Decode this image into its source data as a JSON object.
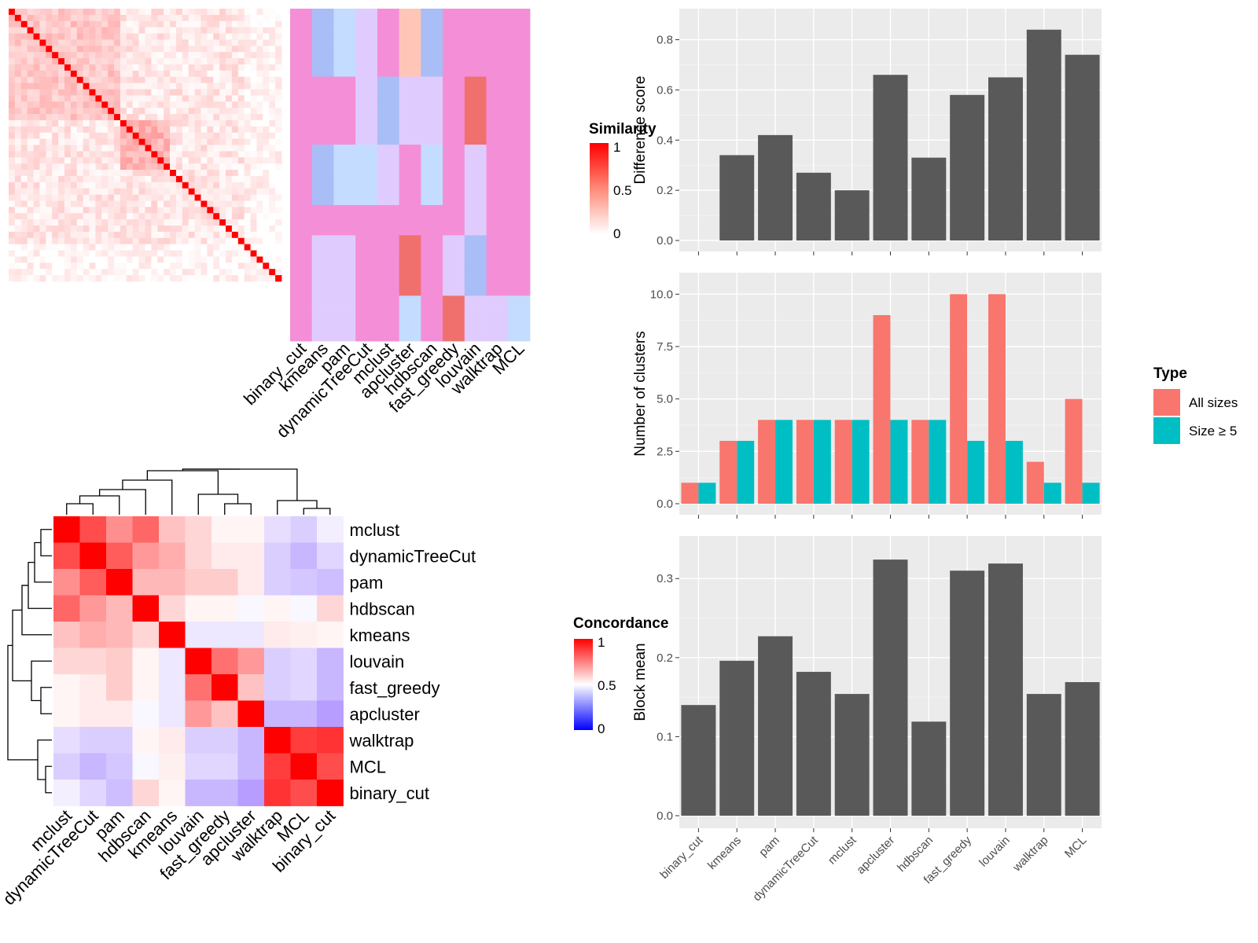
{
  "methods": [
    "binary_cut",
    "kmeans",
    "pam",
    "dynamicTreeCut",
    "mclust",
    "apcluster",
    "hdbscan",
    "fast_greedy",
    "louvain",
    "walktrap",
    "MCL"
  ],
  "colors": {
    "panel_bg": "#ebebeb",
    "bar": "#595959",
    "all_sizes": "#f8766d",
    "size_ge5": "#00bfc4",
    "heat_high": "#ff0000",
    "heat_low_blue": "#0000ff",
    "assign_pink": "#f48fd7",
    "assign_blue": "#a9bdf7",
    "assign_lightblue": "#c3dcff",
    "assign_lavender": "#e0cbff",
    "assign_peach": "#ffc6b8",
    "assign_red": "#f0706e"
  },
  "similarity_heatmap": {
    "legend_title": "Similarity",
    "legend_ticks": [
      "1",
      "0.5",
      "0"
    ],
    "n_terms": 44
  },
  "concordance_heatmap": {
    "legend_title": "Concordance",
    "legend_ticks": [
      "1",
      "0.5",
      "0"
    ],
    "order": [
      "mclust",
      "dynamicTreeCut",
      "pam",
      "hdbscan",
      "kmeans",
      "louvain",
      "fast_greedy",
      "apcluster",
      "walktrap",
      "MCL",
      "binary_cut"
    ],
    "matrix": [
      [
        1.0,
        0.85,
        0.72,
        0.8,
        0.62,
        0.58,
        0.52,
        0.52,
        0.42,
        0.38,
        0.46
      ],
      [
        0.85,
        1.0,
        0.82,
        0.7,
        0.66,
        0.58,
        0.54,
        0.54,
        0.38,
        0.32,
        0.4
      ],
      [
        0.72,
        0.82,
        1.0,
        0.64,
        0.64,
        0.6,
        0.6,
        0.54,
        0.38,
        0.36,
        0.34
      ],
      [
        0.8,
        0.7,
        0.64,
        1.0,
        0.58,
        0.52,
        0.52,
        0.48,
        0.52,
        0.48,
        0.58
      ],
      [
        0.62,
        0.66,
        0.64,
        0.58,
        1.0,
        0.44,
        0.44,
        0.44,
        0.54,
        0.53,
        0.52
      ],
      [
        0.58,
        0.58,
        0.6,
        0.52,
        0.44,
        1.0,
        0.78,
        0.7,
        0.38,
        0.4,
        0.32
      ],
      [
        0.52,
        0.54,
        0.6,
        0.52,
        0.44,
        0.78,
        1.0,
        0.62,
        0.38,
        0.4,
        0.32
      ],
      [
        0.52,
        0.54,
        0.54,
        0.48,
        0.44,
        0.7,
        0.62,
        1.0,
        0.32,
        0.32,
        0.26
      ],
      [
        0.42,
        0.38,
        0.38,
        0.52,
        0.54,
        0.38,
        0.38,
        0.32,
        1.0,
        0.88,
        0.9
      ],
      [
        0.38,
        0.32,
        0.36,
        0.48,
        0.53,
        0.4,
        0.4,
        0.32,
        0.88,
        1.0,
        0.85
      ],
      [
        0.46,
        0.4,
        0.34,
        0.58,
        0.52,
        0.32,
        0.32,
        0.26,
        0.9,
        0.85,
        1.0
      ]
    ]
  },
  "chart_data": [
    {
      "type": "bar",
      "title": "",
      "xlabel": "",
      "ylabel": "Difference score",
      "categories": [
        "binary_cut",
        "kmeans",
        "pam",
        "dynamicTreeCut",
        "mclust",
        "apcluster",
        "hdbscan",
        "fast_greedy",
        "louvain",
        "walktrap",
        "MCL"
      ],
      "values": [
        0.0,
        0.34,
        0.42,
        0.27,
        0.2,
        0.66,
        0.33,
        0.58,
        0.65,
        0.84,
        0.74
      ],
      "ylim": [
        0,
        0.88
      ],
      "yticks": [
        "0.0",
        "0.2",
        "0.4",
        "0.6",
        "0.8"
      ]
    },
    {
      "type": "bar",
      "title": "",
      "xlabel": "",
      "ylabel": "Number of clusters",
      "categories": [
        "binary_cut",
        "kmeans",
        "pam",
        "dynamicTreeCut",
        "mclust",
        "apcluster",
        "hdbscan",
        "fast_greedy",
        "louvain",
        "walktrap",
        "MCL"
      ],
      "series": [
        {
          "name": "All sizes",
          "values": [
            1,
            3,
            4,
            4,
            4,
            9,
            4,
            10,
            10,
            2,
            5
          ]
        },
        {
          "name": "Size ≥ 5",
          "values": [
            1,
            3,
            4,
            4,
            4,
            4,
            4,
            3,
            3,
            1,
            1
          ]
        }
      ],
      "legend_title": "Type",
      "legend_position": "right",
      "ylim": [
        0,
        10.5
      ],
      "yticks": [
        "0.0",
        "2.5",
        "5.0",
        "7.5",
        "10.0"
      ]
    },
    {
      "type": "bar",
      "title": "",
      "xlabel": "",
      "ylabel": "Block mean",
      "categories": [
        "binary_cut",
        "kmeans",
        "pam",
        "dynamicTreeCut",
        "mclust",
        "apcluster",
        "hdbscan",
        "fast_greedy",
        "louvain",
        "walktrap",
        "MCL"
      ],
      "values": [
        0.14,
        0.196,
        0.227,
        0.182,
        0.154,
        0.324,
        0.119,
        0.31,
        0.319,
        0.154,
        0.169
      ],
      "ylim": [
        0,
        0.34
      ],
      "yticks": [
        "0.0",
        "0.1",
        "0.2",
        "0.3"
      ]
    }
  ]
}
